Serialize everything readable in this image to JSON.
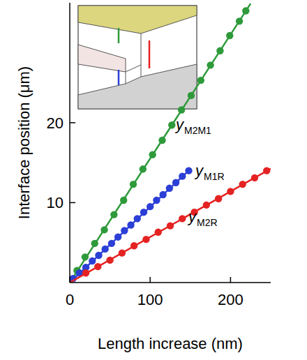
{
  "chart_data": {
    "type": "scatter",
    "xlabel": "Length increase (nm)",
    "ylabel": "Interface position (μm)",
    "xlim": [
      0,
      250
    ],
    "ylim": [
      0,
      35
    ],
    "xticks": [
      0,
      100,
      200
    ],
    "yticks": [
      10,
      20
    ],
    "grid": false,
    "series": [
      {
        "label": {
          "text": "y",
          "subscript": "M2M1"
        },
        "color": "#2e9a3a",
        "marker": "circle",
        "line_style": "solid",
        "x": [
          9,
          19,
          31,
          43,
          55,
          67,
          79,
          91,
          103,
          115,
          127,
          139,
          151,
          163,
          175,
          187,
          199,
          211,
          219
        ],
        "values": [
          1.5,
          3.2,
          4.9,
          6.6,
          8.5,
          10.3,
          12.3,
          14.2,
          16.0,
          17.8,
          19.7,
          21.6,
          23.4,
          25.3,
          27.2,
          29.0,
          30.9,
          32.7,
          34.0
        ],
        "fit_x": [
          0,
          225
        ],
        "fit_values": [
          0,
          34.9
        ]
      },
      {
        "label": {
          "text": "y",
          "subscript": "M1R"
        },
        "color": "#2b3fd6",
        "marker": "circle",
        "line_style": "solid",
        "x": [
          4,
          12,
          20,
          28,
          36,
          44,
          52,
          60,
          68,
          76,
          84,
          92,
          100,
          108,
          116,
          124,
          132,
          140,
          148
        ],
        "values": [
          0.5,
          1.2,
          1.9,
          2.7,
          3.4,
          4.2,
          4.9,
          5.7,
          6.5,
          7.2,
          8.0,
          8.8,
          9.5,
          10.3,
          11.0,
          11.8,
          12.5,
          13.3,
          14.0
        ],
        "fit_x": [
          0,
          150
        ],
        "fit_values": [
          0,
          14.2
        ]
      },
      {
        "label": {
          "text": "y",
          "subscript": "M2R"
        },
        "color": "#e52222",
        "marker": "circle",
        "line_style": "solid",
        "x": [
          20,
          35,
          50,
          65,
          80,
          95,
          110,
          125,
          140,
          155,
          170,
          185,
          200,
          215,
          230,
          245
        ],
        "values": [
          1.2,
          2.0,
          2.8,
          3.7,
          4.6,
          5.4,
          6.3,
          7.1,
          8.0,
          8.8,
          9.7,
          10.5,
          11.4,
          12.3,
          13.1,
          14.0
        ],
        "fit_x": [
          0,
          250
        ],
        "fit_values": [
          0,
          14.25
        ]
      }
    ]
  }
}
